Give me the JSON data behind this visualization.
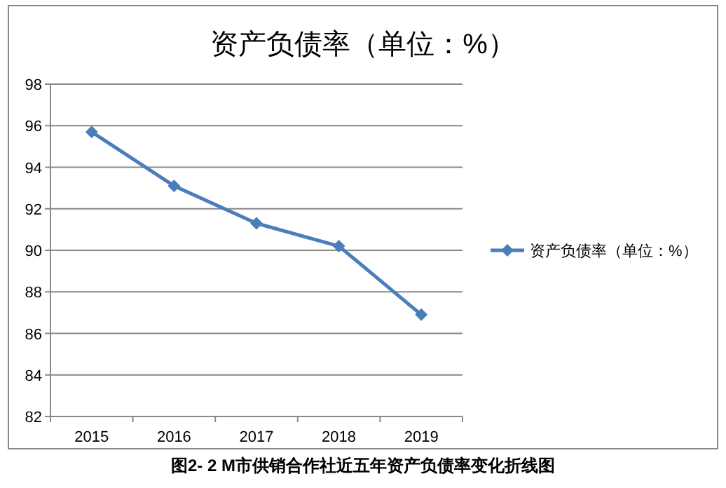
{
  "chart_data": {
    "type": "line",
    "title": "资产负债率（单位：%）",
    "categories": [
      "2015",
      "2016",
      "2017",
      "2018",
      "2019"
    ],
    "series": [
      {
        "name": "资产负债率（单位：%）",
        "color": "#4a7ebb",
        "values": [
          95.7,
          93.1,
          91.3,
          90.2,
          86.9
        ]
      }
    ],
    "ylim": [
      82,
      98
    ],
    "yticks": [
      82,
      84,
      86,
      88,
      90,
      92,
      94,
      96,
      98
    ],
    "grid": "y",
    "legend": "right",
    "marker": "diamond",
    "line_style": "solid",
    "annotations": [
      "图2- 2 M市供销合作社近五年资产负债率变化折线图"
    ]
  }
}
